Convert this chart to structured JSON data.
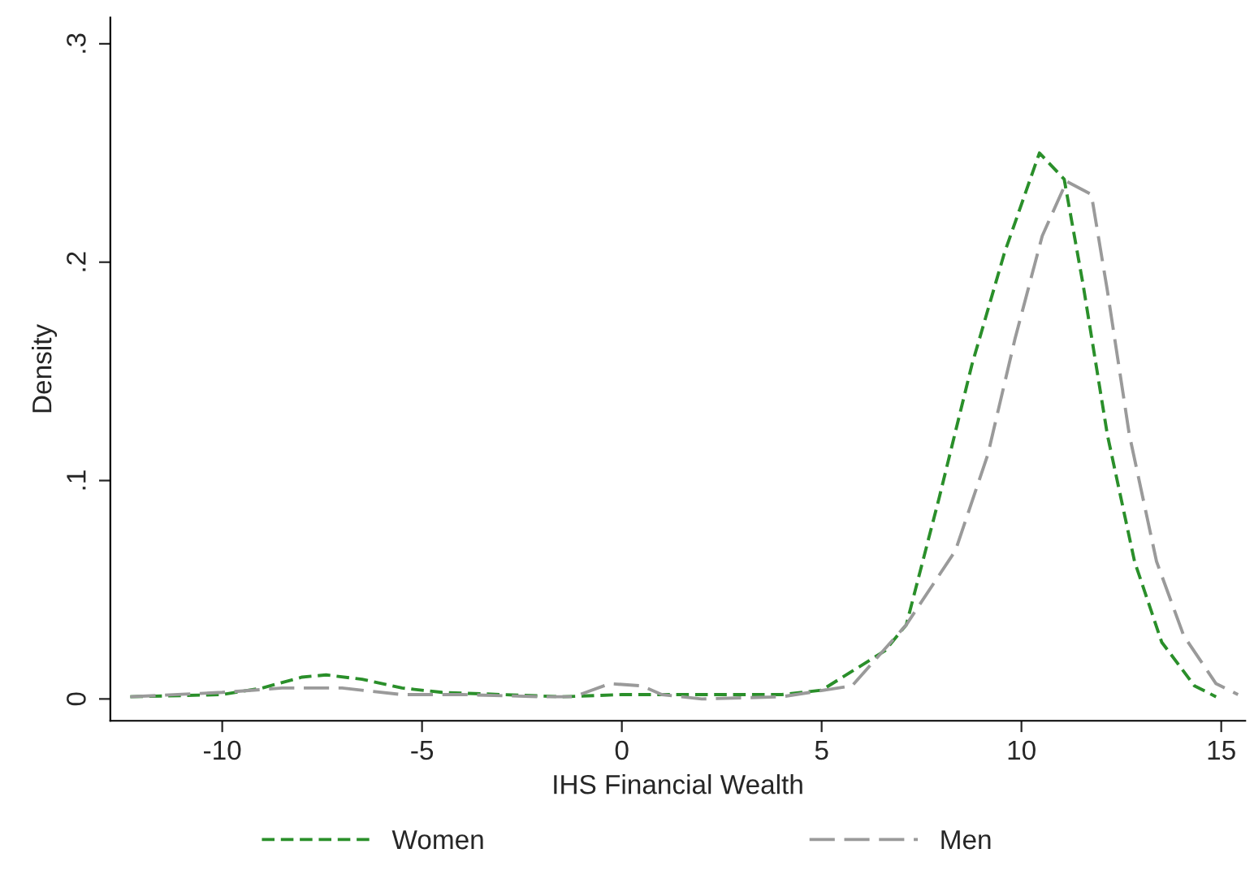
{
  "chart_data": {
    "type": "line",
    "xlabel": "IHS Financial Wealth",
    "ylabel": "Density",
    "xlim": [
      -12.8,
      15.6
    ],
    "ylim": [
      -0.01,
      0.312
    ],
    "xticks": [
      -10,
      -5,
      0,
      5,
      10,
      15
    ],
    "yticks": [
      0,
      {
        "value": 0.1,
        "label": ".1"
      },
      {
        "value": 0.2,
        "label": ".2"
      },
      {
        "value": 0.3,
        "label": ".3"
      }
    ],
    "grid": false,
    "legend": "bottom",
    "marker": "none",
    "line_style": "dashed",
    "series": [
      {
        "name": "Women",
        "color": "#2a8f2a",
        "x": [
          -12.3,
          -10,
          -9,
          -8,
          -7.4,
          -6.5,
          -5.5,
          -4.5,
          -3,
          -1.5,
          0,
          2,
          4,
          5.0,
          6.58,
          7.12,
          7.94,
          8.76,
          9.57,
          10.45,
          11.07,
          11.54,
          12.15,
          12.83,
          13.51,
          14.33,
          14.87
        ],
        "values": [
          0.001,
          0.002,
          0.005,
          0.01,
          0.011,
          0.009,
          0.005,
          0.003,
          0.002,
          0.001,
          0.002,
          0.002,
          0.002,
          0.004,
          0.022,
          0.034,
          0.092,
          0.153,
          0.204,
          0.25,
          0.238,
          0.19,
          0.121,
          0.063,
          0.026,
          0.006,
          0.001
        ]
      },
      {
        "name": "Men",
        "color": "#9a9a9a",
        "x": [
          -12.3,
          -10,
          -8.5,
          -7,
          -5.5,
          -4,
          -2,
          -1.2,
          -0.3,
          0.5,
          1,
          2,
          4,
          5.76,
          7.12,
          8.35,
          9.16,
          9.84,
          10.52,
          11.13,
          11.75,
          12.15,
          12.7,
          13.38,
          14.06,
          14.87,
          15.42
        ],
        "values": [
          0.001,
          0.003,
          0.005,
          0.005,
          0.002,
          0.002,
          0.001,
          0.001,
          0.007,
          0.006,
          0.002,
          0.0,
          0.001,
          0.006,
          0.034,
          0.068,
          0.112,
          0.165,
          0.212,
          0.237,
          0.231,
          0.187,
          0.121,
          0.063,
          0.029,
          0.007,
          0.002
        ]
      }
    ]
  }
}
